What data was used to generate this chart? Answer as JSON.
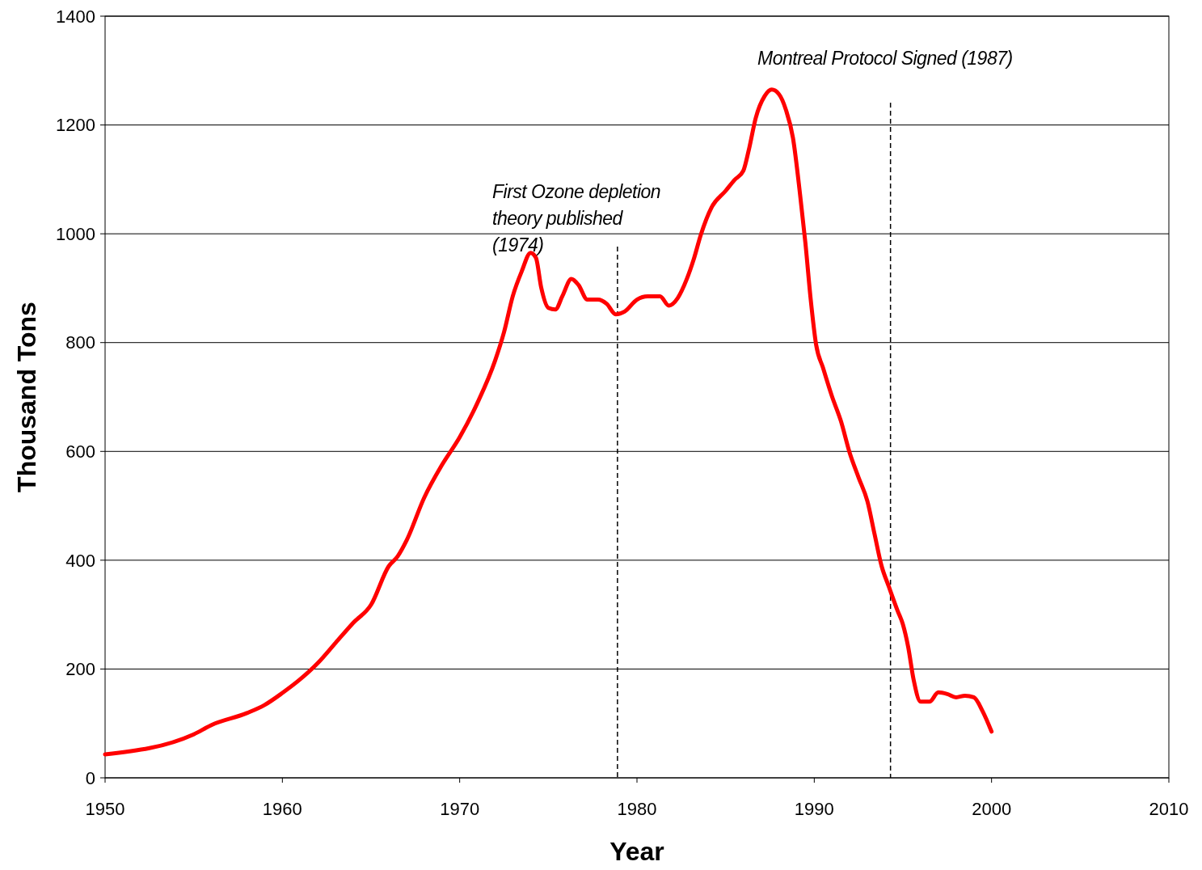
{
  "chart_data": {
    "type": "line",
    "xlabel": "Year",
    "ylabel": "Thousand Tons",
    "xlim": [
      1950,
      2010
    ],
    "xticks": [
      1950,
      1960,
      1970,
      1980,
      1990,
      2000,
      2010
    ],
    "ylim": [
      0,
      1400
    ],
    "yticks": [
      0,
      200,
      400,
      600,
      800,
      1000,
      1200,
      1400
    ],
    "grid": "y",
    "marker": "none",
    "line_style": "solid",
    "series": [
      {
        "color": "#ff0000",
        "x": [
          1950,
          1955,
          1956,
          1958,
          1959,
          1960,
          1961,
          1962,
          1963,
          1964,
          1965,
          1966,
          1966.5,
          1967,
          1968,
          1969,
          1970,
          1971,
          1972,
          1972.5,
          1973,
          1973.5,
          1974,
          1974.3,
          1974.6,
          1975,
          1975.4,
          1975.8,
          1976.3,
          1976.7,
          1977.2,
          1977.8,
          1978.3,
          1978.8,
          1979.3,
          1980,
          1980.6,
          1981.3,
          1981.8,
          1982.3,
          1982.8,
          1983.2,
          1983.6,
          1984.2,
          1985,
          1985.5,
          1986,
          1986.3,
          1986.7,
          1987.2,
          1987.6,
          1988,
          1988.4,
          1988.8,
          1989.2,
          1989.5,
          1989.8,
          1990.1,
          1990.5,
          1991,
          1991.5,
          1992,
          1992.5,
          1993,
          1993.4,
          1993.8,
          1994.2,
          1994.7,
          1995,
          1995.3,
          1995.6,
          1996,
          1996.5,
          1997,
          1997.5,
          1998,
          1998.5,
          1999,
          1999.5,
          2000
        ],
        "values": [
          43,
          80,
          97,
          119,
          134,
          156,
          181,
          211,
          248,
          285,
          318,
          389,
          407,
          436,
          515,
          575,
          626,
          689,
          767,
          819,
          886,
          931,
          965,
          956,
          901,
          864,
          861,
          886,
          917,
          906,
          879,
          879,
          871,
          852,
          857,
          879,
          885,
          885,
          868,
          882,
          916,
          953,
          998,
          1048,
          1079,
          1099,
          1116,
          1153,
          1213,
          1253,
          1265,
          1257,
          1228,
          1176,
          1072,
          983,
          879,
          797,
          753,
          701,
          656,
          597,
          552,
          508,
          448,
          389,
          352,
          307,
          282,
          240,
          181,
          140,
          140,
          157,
          154,
          148,
          151,
          148,
          122,
          85
        ]
      }
    ],
    "ref_lines": [
      {
        "axis": "x",
        "value": 1978.9,
        "color": "#000000",
        "line_style": "dashed"
      },
      {
        "axis": "x",
        "value": 1994.3,
        "color": "#000000",
        "line_style": "dashed"
      }
    ],
    "annotations": [
      "First Ozone depletion theory published (1974)",
      "Montreal Protocol Signed (1987)"
    ]
  }
}
